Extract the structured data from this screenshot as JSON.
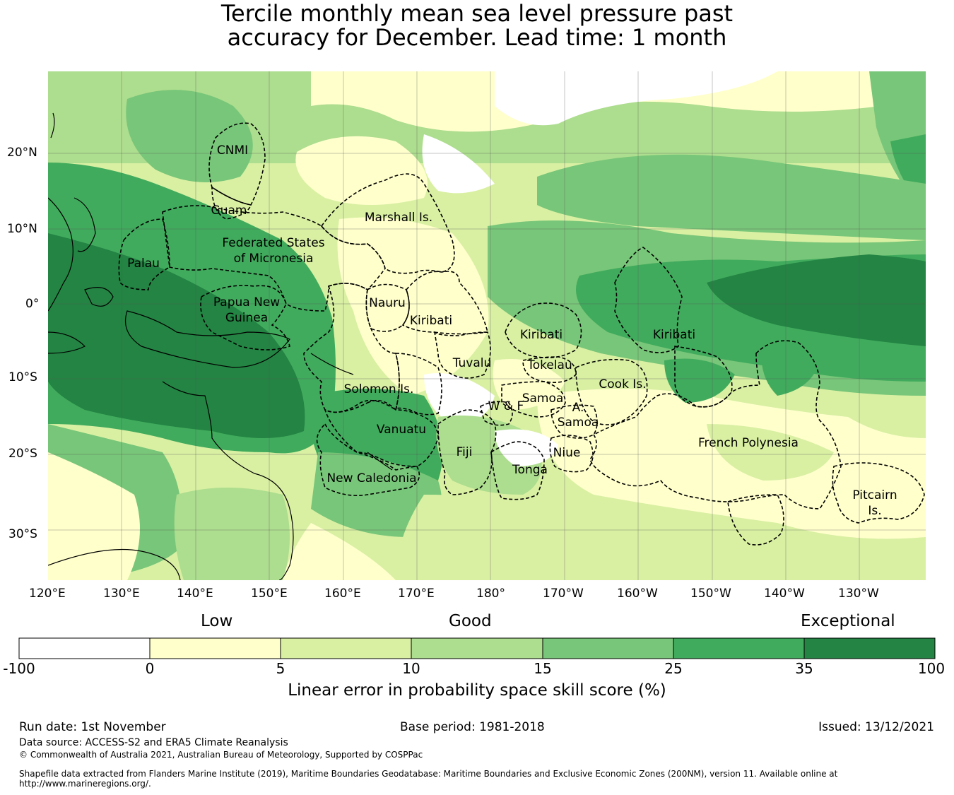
{
  "title_line1": "Tercile monthly mean sea level pressure past",
  "title_line2": "accuracy for December. Lead time: 1 month",
  "lon_labels": [
    "120°E",
    "130°E",
    "140°E",
    "150°E",
    "160°E",
    "170°E",
    "180°",
    "170°W",
    "160°W",
    "150°W",
    "140°W",
    "130°W"
  ],
  "lat_labels": [
    "20°N",
    "10°N",
    "0°",
    "10°S",
    "20°S",
    "30°S"
  ],
  "regions": {
    "cnmi": "CNMI",
    "guam": "Guam",
    "marshall": "Marshall Is.",
    "fsm1": "Federated States",
    "fsm2": "of Micronesia",
    "palau": "Palau",
    "png1": "Papua New",
    "png2": "Guinea",
    "nauru": "Nauru",
    "kiribati_w": "Kiribati",
    "kiribati_c": "Kiribati",
    "kiribati_e": "Kiribati",
    "tuvalu": "Tuvalu",
    "tokelau": "Tokelau",
    "solomon": "Solomon Is.",
    "samoa": "Samoa",
    "wf": "W & F",
    "asamoa1": "A.",
    "asamoa2": "Samoa",
    "cook": "Cook Is.",
    "vanuatu": "Vanuatu",
    "fiji": "Fiji",
    "niue": "Niue",
    "tonga": "Tonga",
    "french_polynesia": "French Polynesia",
    "new_caledonia": "New Caledonia",
    "pitcairn1": "Pitcairn",
    "pitcairn2": "Is."
  },
  "category_labels": {
    "low": "Low",
    "good": "Good",
    "exceptional": "Exceptional"
  },
  "colorbar": {
    "ticks": [
      "-100",
      "0",
      "5",
      "10",
      "15",
      "25",
      "35",
      "100"
    ],
    "colors": [
      "#ffffff",
      "#ffffcc",
      "#d9f0a3",
      "#addd8e",
      "#78c679",
      "#41ab5d",
      "#238443"
    ],
    "label": "Linear error in probability space skill score (%)"
  },
  "footer": {
    "run_date": "Run date: 1st November",
    "base_period": "Base period: 1981-2018",
    "issued": "Issued: 13/12/2021",
    "data_source": "Data source: ACCESS-S2 and ERA5 Climate Reanalysis",
    "copyright": "© Commonwealth of Australia 2021, Australian Bureau of Meteorology, Supported by COSPPac",
    "shapefile1": "Shapefile data extracted from Flanders Marine Institute (2019), Maritime Boundaries Geodatabase: Maritime Boundaries and Exclusive Economic Zones (200NM), version 11. Available online at",
    "shapefile2": "http://www.marineregions.org/."
  }
}
